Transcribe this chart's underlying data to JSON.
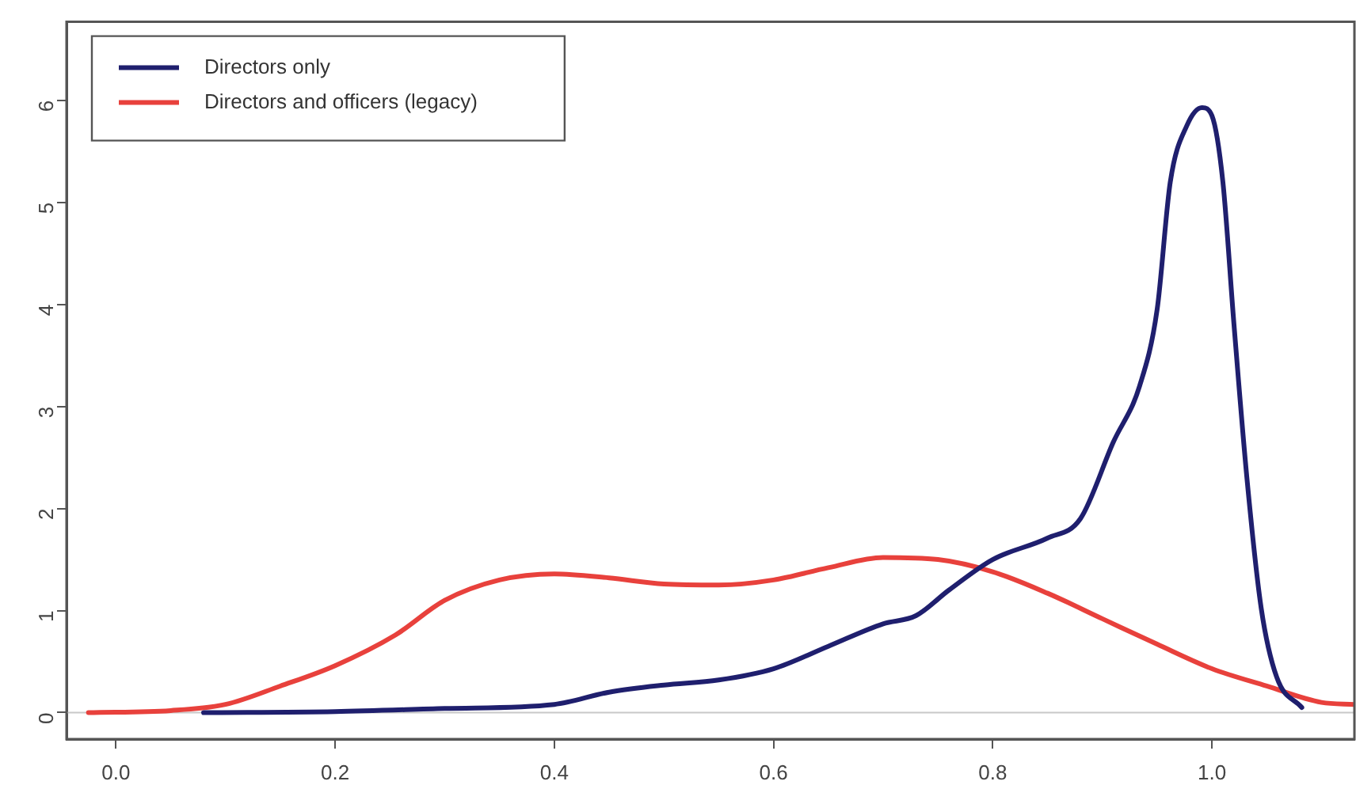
{
  "chart_data": {
    "type": "line",
    "xlim": [
      -0.045,
      1.13
    ],
    "ylim": [
      -0.26,
      6.77
    ],
    "xticks": [
      {
        "value": 0,
        "label": "0.0"
      },
      0.2,
      0.4,
      0.6,
      0.8,
      {
        "value": 1,
        "label": "1.0"
      }
    ],
    "yticks": [
      0,
      1,
      2,
      3,
      4,
      5,
      6
    ],
    "grid": false,
    "legend": "top left",
    "marker": "none",
    "line_style": "solid",
    "ref_lines": [
      {
        "axis": "y",
        "value": 0,
        "color": "#c8c8c8"
      }
    ],
    "series": [
      {
        "name": "Directors only",
        "color": "#1f1f6e",
        "x": [
          0.08,
          0.2,
          0.3,
          0.4,
          0.45,
          0.5,
          0.55,
          0.6,
          0.65,
          0.7,
          0.73,
          0.76,
          0.8,
          0.85,
          0.88,
          0.91,
          0.934,
          0.95,
          0.962,
          0.977,
          0.991,
          1.0,
          1.01,
          1.02,
          1.032,
          1.045,
          1.059,
          1.082
        ],
        "values": [
          0,
          0.01,
          0.04,
          0.08,
          0.2,
          0.27,
          0.32,
          0.43,
          0.65,
          0.87,
          0.95,
          1.2,
          1.5,
          1.71,
          1.9,
          2.65,
          3.2,
          3.95,
          5.2,
          5.75,
          5.93,
          5.85,
          5.2,
          3.82,
          2.29,
          1.02,
          0.35,
          0.05
        ]
      },
      {
        "name": "Directors and officers (legacy)",
        "color": "#e8413c",
        "x": [
          -0.025,
          0.05,
          0.1,
          0.15,
          0.2,
          0.255,
          0.3,
          0.35,
          0.4,
          0.45,
          0.5,
          0.55,
          0.6,
          0.65,
          0.7,
          0.75,
          0.8,
          0.85,
          0.9,
          0.95,
          1.0,
          1.05,
          1.1,
          1.13
        ],
        "values": [
          0,
          0.02,
          0.08,
          0.26,
          0.46,
          0.76,
          1.1,
          1.3,
          1.36,
          1.32,
          1.26,
          1.25,
          1.3,
          1.42,
          1.52,
          1.5,
          1.38,
          1.17,
          0.92,
          0.67,
          0.43,
          0.26,
          0.1,
          0.08
        ]
      }
    ]
  }
}
